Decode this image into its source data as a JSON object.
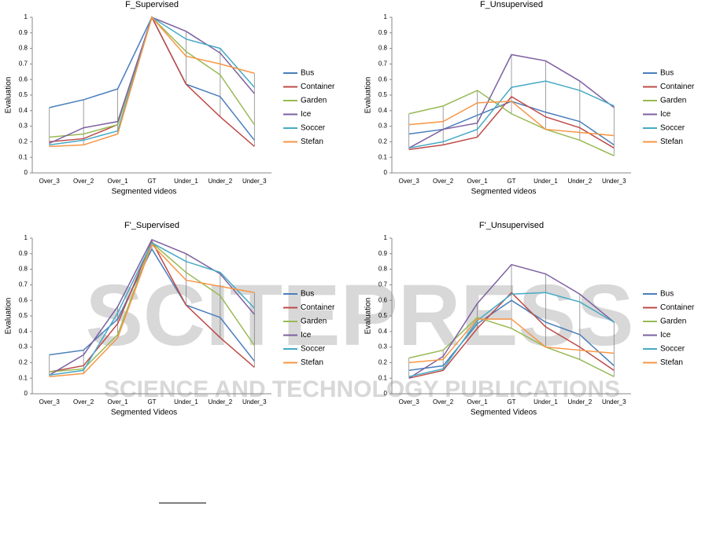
{
  "watermark": {
    "title": "SCITEPRESS",
    "subtitle": "SCIENCE AND TECHNOLOGY PUBLICATIONS"
  },
  "chart_data": [
    {
      "type": "line",
      "title": "F_Supervised",
      "x_label": "Segmented videos",
      "y_label": "Evaluation",
      "categories": [
        "Over_3",
        "Over_2",
        "Over_1",
        "GT",
        "Under_1",
        "Under_2",
        "Under_3"
      ],
      "ylim": [
        0,
        1
      ],
      "yticks": [
        0,
        0.1,
        0.2,
        0.3,
        0.4,
        0.5,
        0.6,
        0.7,
        0.8,
        0.9,
        1
      ],
      "series": [
        {
          "name": "Bus",
          "color": "#4a7ebb",
          "values": [
            0.42,
            0.47,
            0.54,
            1.0,
            0.57,
            0.49,
            0.21
          ]
        },
        {
          "name": "Container",
          "color": "#be4b48",
          "values": [
            0.2,
            0.22,
            0.31,
            1.0,
            0.57,
            0.36,
            0.17
          ]
        },
        {
          "name": "Garden",
          "color": "#98b954",
          "values": [
            0.23,
            0.25,
            0.31,
            1.0,
            0.78,
            0.63,
            0.31
          ]
        },
        {
          "name": "Ice",
          "color": "#7d60a0",
          "values": [
            0.19,
            0.29,
            0.33,
            1.0,
            0.91,
            0.77,
            0.51
          ]
        },
        {
          "name": "Soccer",
          "color": "#46aac5",
          "values": [
            0.18,
            0.21,
            0.27,
            1.0,
            0.86,
            0.8,
            0.55
          ]
        },
        {
          "name": "Stefan",
          "color": "#f79646",
          "values": [
            0.17,
            0.18,
            0.25,
            1.0,
            0.75,
            0.7,
            0.64
          ]
        }
      ]
    },
    {
      "type": "line",
      "title": "F_Unsupervised",
      "x_label": "Segmented videos",
      "y_label": "Evaluation",
      "categories": [
        "Over_3",
        "Over_2",
        "Over_1",
        "GT",
        "Under_1",
        "Under_2",
        "Under_3"
      ],
      "ylim": [
        0,
        1
      ],
      "yticks": [
        0,
        0.1,
        0.2,
        0.3,
        0.4,
        0.5,
        0.6,
        0.7,
        0.8,
        0.9,
        1
      ],
      "series": [
        {
          "name": "Bus",
          "color": "#4a7ebb",
          "values": [
            0.25,
            0.28,
            0.37,
            0.46,
            0.39,
            0.33,
            0.18
          ]
        },
        {
          "name": "Container",
          "color": "#be4b48",
          "values": [
            0.15,
            0.18,
            0.23,
            0.49,
            0.36,
            0.29,
            0.16
          ]
        },
        {
          "name": "Garden",
          "color": "#98b954",
          "values": [
            0.38,
            0.43,
            0.53,
            0.38,
            0.28,
            0.21,
            0.11
          ]
        },
        {
          "name": "Ice",
          "color": "#7d60a0",
          "values": [
            0.16,
            0.28,
            0.32,
            0.76,
            0.72,
            0.59,
            0.42
          ]
        },
        {
          "name": "Soccer",
          "color": "#46aac5",
          "values": [
            0.16,
            0.2,
            0.28,
            0.55,
            0.59,
            0.53,
            0.43
          ]
        },
        {
          "name": "Stefan",
          "color": "#f79646",
          "values": [
            0.31,
            0.33,
            0.45,
            0.46,
            0.28,
            0.26,
            0.24
          ]
        }
      ]
    },
    {
      "type": "line",
      "title": "F'_Supervised",
      "x_label": "Segmented Videos",
      "y_label": "Evaluation",
      "categories": [
        "Over_3",
        "Over_2",
        "Over_1",
        "GT",
        "Under_1",
        "Under_2",
        "Under_3"
      ],
      "ylim": [
        0,
        1
      ],
      "yticks": [
        0,
        0.1,
        0.2,
        0.3,
        0.4,
        0.5,
        0.6,
        0.7,
        0.8,
        0.9,
        1
      ],
      "series": [
        {
          "name": "Bus",
          "color": "#4a7ebb",
          "values": [
            0.25,
            0.28,
            0.48,
            0.93,
            0.57,
            0.49,
            0.21
          ]
        },
        {
          "name": "Container",
          "color": "#be4b48",
          "values": [
            0.14,
            0.18,
            0.45,
            0.98,
            0.57,
            0.36,
            0.17
          ]
        },
        {
          "name": "Garden",
          "color": "#98b954",
          "values": [
            0.14,
            0.16,
            0.38,
            0.97,
            0.78,
            0.63,
            0.31
          ]
        },
        {
          "name": "Ice",
          "color": "#7d60a0",
          "values": [
            0.12,
            0.25,
            0.56,
            0.99,
            0.9,
            0.77,
            0.51
          ]
        },
        {
          "name": "Soccer",
          "color": "#46aac5",
          "values": [
            0.12,
            0.15,
            0.52,
            0.97,
            0.85,
            0.78,
            0.55
          ]
        },
        {
          "name": "Stefan",
          "color": "#f79646",
          "values": [
            0.11,
            0.13,
            0.36,
            0.96,
            0.73,
            0.69,
            0.65
          ]
        }
      ]
    },
    {
      "type": "line",
      "title": "F'_Unsupervised",
      "x_label": "Segmented Videos",
      "y_label": "Evaluation",
      "categories": [
        "Over_3",
        "Over_2",
        "Over_1",
        "GT",
        "Under_1",
        "Under_2",
        "Under_3"
      ],
      "ylim": [
        0,
        1
      ],
      "yticks": [
        0,
        0.1,
        0.2,
        0.3,
        0.4,
        0.5,
        0.6,
        0.7,
        0.8,
        0.9,
        1
      ],
      "series": [
        {
          "name": "Bus",
          "color": "#4a7ebb",
          "values": [
            0.15,
            0.18,
            0.45,
            0.6,
            0.46,
            0.38,
            0.18
          ]
        },
        {
          "name": "Container",
          "color": "#be4b48",
          "values": [
            0.1,
            0.15,
            0.42,
            0.65,
            0.43,
            0.3,
            0.15
          ]
        },
        {
          "name": "Garden",
          "color": "#98b954",
          "values": [
            0.23,
            0.28,
            0.49,
            0.42,
            0.3,
            0.22,
            0.11
          ]
        },
        {
          "name": "Ice",
          "color": "#7d60a0",
          "values": [
            0.1,
            0.24,
            0.58,
            0.83,
            0.77,
            0.64,
            0.46
          ]
        },
        {
          "name": "Soccer",
          "color": "#46aac5",
          "values": [
            0.11,
            0.16,
            0.47,
            0.64,
            0.65,
            0.59,
            0.46
          ]
        },
        {
          "name": "Stefan",
          "color": "#f79646",
          "values": [
            0.2,
            0.22,
            0.48,
            0.48,
            0.3,
            0.28,
            0.26
          ]
        }
      ]
    }
  ]
}
